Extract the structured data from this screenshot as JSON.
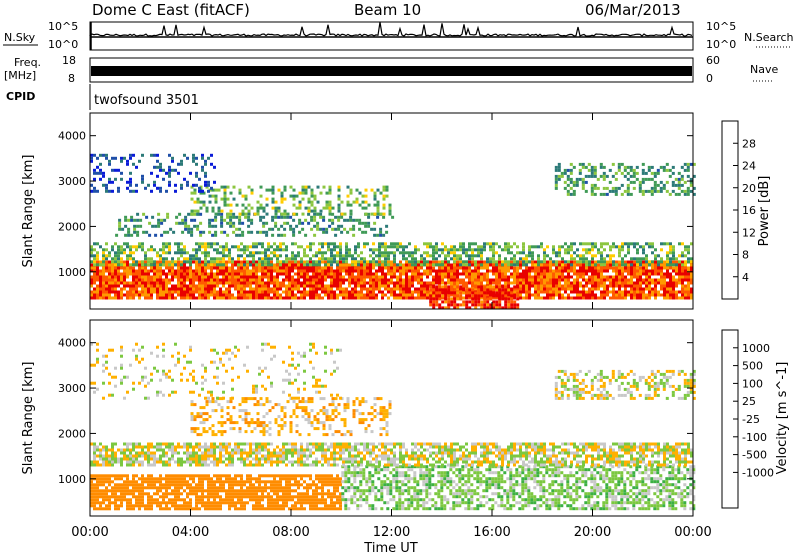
{
  "header": {
    "site": "Dome C East (fitACF)",
    "beam": "Beam 10",
    "date": "06/Mar/2013"
  },
  "strips": {
    "nsky_label": "N.Sky",
    "nsky_top": "10^5",
    "nsky_bottom": "10^0",
    "nsearch_label": "N.Search",
    "nsearch_top": "10^5",
    "nsearch_bottom": "10^0",
    "freq_label": "Freq.",
    "freq_unit": "[MHz]",
    "freq_top": "18",
    "freq_bottom": "8",
    "nave_label": "Nave",
    "nave_top": "60",
    "nave_bottom": "0",
    "cpid_label": "CPID",
    "cpid_value": "twofsound 3501"
  },
  "chart_data": [
    {
      "type": "heatmap",
      "name": "power",
      "ylabel": "Slant Range [km]",
      "ylim": [
        180,
        4500
      ],
      "yticks": [
        "1000",
        "2000",
        "3000",
        "4000"
      ],
      "xlim": [
        "00:00",
        "24:00"
      ],
      "colorbar_label": "Power [dB]",
      "colorbar_ticks": [
        "4",
        "8",
        "12",
        "16",
        "20",
        "24",
        "28"
      ],
      "colorbar_range": [
        0,
        32
      ],
      "colors": [
        "#0a1bd8",
        "#1f4fa8",
        "#2c7a78",
        "#3f9a56",
        "#8cc63f",
        "#ffcc00",
        "#ff9a00",
        "#ff5a00",
        "#e80000"
      ],
      "scatter_bands": [
        {
          "t0": 0.0,
          "t1": 24.0,
          "r0": 420,
          "r1": 1250,
          "value": 27,
          "density": 0.9
        },
        {
          "t0": 0.0,
          "t1": 24.0,
          "r0": 1150,
          "r1": 1650,
          "value": 14,
          "density": 0.55
        },
        {
          "t0": 1.0,
          "t1": 12.0,
          "r0": 1800,
          "r1": 2300,
          "value": 11,
          "density": 0.35
        },
        {
          "t0": 4.0,
          "t1": 12.0,
          "r0": 2300,
          "r1": 2900,
          "value": 14,
          "density": 0.35
        },
        {
          "t0": 0.0,
          "t1": 5.0,
          "r0": 2800,
          "r1": 3600,
          "value": 5,
          "density": 0.25
        },
        {
          "t0": 18.5,
          "t1": 24.0,
          "r0": 2700,
          "r1": 3400,
          "value": 12,
          "density": 0.4
        },
        {
          "t0": 13.5,
          "t1": 17.0,
          "r0": 180,
          "r1": 700,
          "value": 29,
          "density": 0.8
        }
      ]
    },
    {
      "type": "heatmap",
      "name": "velocity",
      "ylabel": "Slant Range [km]",
      "ylim": [
        180,
        4500
      ],
      "yticks": [
        "1000",
        "2000",
        "3000",
        "4000"
      ],
      "xlabel": "Time UT",
      "xticks": [
        "00:00",
        "04:00",
        "08:00",
        "12:00",
        "16:00",
        "20:00",
        "00:00"
      ],
      "xlim": [
        "00:00",
        "24:00"
      ],
      "colorbar_label": "Velocity [m s^-1]",
      "colorbar_ticks": [
        "1000",
        "500",
        "100",
        "25",
        "-25",
        "-100",
        "-500",
        "-1000"
      ],
      "colors": [
        "#1020c0",
        "#2a6aa8",
        "#2e8b57",
        "#3cb043",
        "#7cc840",
        "#c8c8c8",
        "#ffb000",
        "#ff8c00",
        "#ff5000",
        "#e80000"
      ],
      "scatter_bands": [
        {
          "t0": 0.0,
          "t1": 10.0,
          "r0": 350,
          "r1": 1100,
          "value": -180,
          "density": 0.8
        },
        {
          "t0": 10.0,
          "t1": 24.0,
          "r0": 350,
          "r1": 1300,
          "value": 60,
          "density": 0.6
        },
        {
          "t0": 0.0,
          "t1": 24.0,
          "r0": 1300,
          "r1": 1800,
          "value": 0,
          "density": 0.7
        },
        {
          "t0": 4.0,
          "t1": 12.0,
          "r0": 2000,
          "r1": 2800,
          "value": -70,
          "density": 0.35
        },
        {
          "t0": 18.5,
          "t1": 24.0,
          "r0": 2800,
          "r1": 3400,
          "value": 0,
          "density": 0.45
        },
        {
          "t0": 0.0,
          "t1": 10.0,
          "r0": 2800,
          "r1": 4000,
          "value": -10,
          "density": 0.15
        }
      ]
    }
  ]
}
